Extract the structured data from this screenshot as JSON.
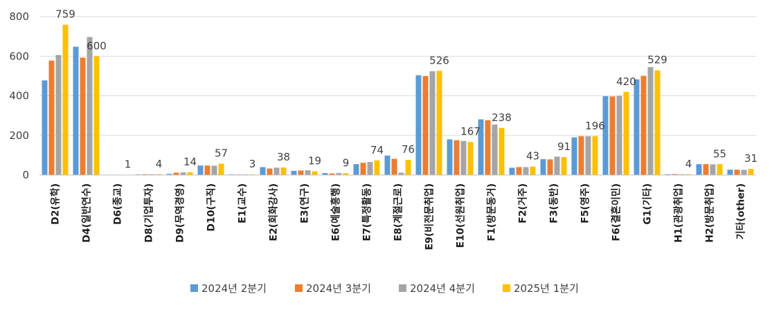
{
  "chart_data": {
    "type": "bar",
    "title": "",
    "xlabel": "",
    "ylabel": "",
    "ylim": [
      0,
      800
    ],
    "yticks": [
      "0",
      "200",
      "400",
      "600",
      "800"
    ],
    "grid": true,
    "legend_position": "bottom",
    "categories": [
      "D2(유학)",
      "D4(일반연수)",
      "D6(종교)",
      "D8(기업투자)",
      "D9(무역경영)",
      "D10(구직)",
      "E1(교수)",
      "E2(회화강사)",
      "E3(연구)",
      "E6(예술흥행)",
      "E7(특정활동)",
      "E8(계절근로)",
      "E9(비전문취업)",
      "E10(선원취업)",
      "F1(방문동거)",
      "F2(거주)",
      "F3(동반)",
      "F5(영주)",
      "F6(결혼이민)",
      "G1(기타)",
      "H1(관광취업)",
      "H2(방문취업)",
      "기타(other)"
    ],
    "series": [
      {
        "name": "2024년 2분기",
        "color": "#5b9bd5",
        "values": [
          478,
          648,
          1,
          3,
          6,
          48,
          3,
          40,
          21,
          10,
          55,
          98,
          504,
          180,
          281,
          37,
          80,
          190,
          398,
          483,
          4,
          55,
          27
        ]
      },
      {
        "name": "2024년 3분기",
        "color": "#ed7d31",
        "values": [
          578,
          593,
          0,
          4,
          12,
          48,
          3,
          33,
          23,
          8,
          62,
          82,
          500,
          176,
          277,
          40,
          79,
          196,
          397,
          501,
          5,
          55,
          27
        ]
      },
      {
        "name": "2024년 4분기",
        "color": "#a5a5a5",
        "values": [
          606,
          697,
          1,
          4,
          13,
          47,
          3,
          37,
          24,
          10,
          66,
          12,
          524,
          172,
          255,
          40,
          93,
          196,
          400,
          545,
          4,
          54,
          26
        ]
      },
      {
        "name": "2025년 1분기",
        "color": "#ffc000",
        "values": [
          759,
          600,
          1,
          4,
          14,
          57,
          3,
          38,
          19,
          9,
          74,
          76,
          526,
          167,
          238,
          43,
          91,
          196,
          420,
          529,
          4,
          55,
          31
        ]
      }
    ],
    "data_labels": {
      "series": "2025년 1분기",
      "values": [
        "759",
        "600",
        "1",
        "4",
        "14",
        "57",
        "3",
        "38",
        "19",
        "9",
        "74",
        "76",
        "526",
        "167",
        "238",
        "43",
        "91",
        "196",
        "420",
        "529",
        "4",
        "55",
        "31"
      ]
    }
  }
}
